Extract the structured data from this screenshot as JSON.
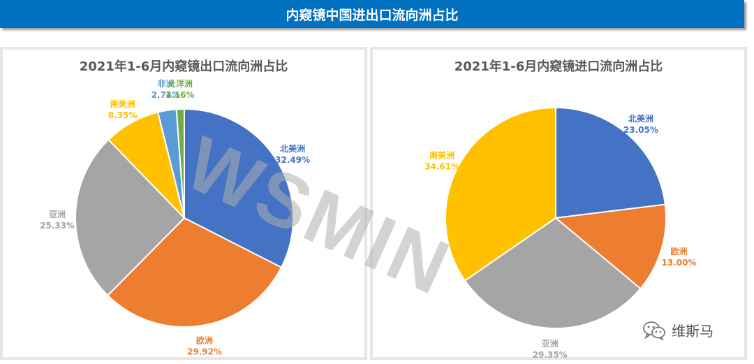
{
  "header": {
    "title": "内窥镜中国进出口流向洲占比"
  },
  "watermark": "WSMIN",
  "brand": {
    "name": "维斯马",
    "icon": "wechat-icon"
  },
  "colors": {
    "北美洲": "#4472c4",
    "欧洲": "#ed7d31",
    "亚洲": "#a5a5a5",
    "南美洲": "#ffc000",
    "非洲": "#5b9bd5",
    "大洋洲": "#70ad47"
  },
  "chart_data": [
    {
      "type": "pie",
      "title": "2021年1-6月内窥镜出口流向洲占比",
      "slices": [
        {
          "label": "北美洲",
          "value": 32.49,
          "text": "32.49%"
        },
        {
          "label": "欧洲",
          "value": 29.92,
          "text": "29.92%"
        },
        {
          "label": "亚洲",
          "value": 25.33,
          "text": "25.33%"
        },
        {
          "label": "南美洲",
          "value": 8.35,
          "text": "8.35%"
        },
        {
          "label": "非洲",
          "value": 2.74,
          "text": "2.74%"
        },
        {
          "label": "大洋洲",
          "value": 1.16,
          "text": "1.16%"
        }
      ]
    },
    {
      "type": "pie",
      "title": "2021年1-6月内窥镜进口流向洲占比",
      "slices": [
        {
          "label": "北美洲",
          "value": 23.05,
          "text": "23.05%"
        },
        {
          "label": "欧洲",
          "value": 13.0,
          "text": "13.00%"
        },
        {
          "label": "亚洲",
          "value": 29.35,
          "text": "29.35%"
        },
        {
          "label": "南美洲",
          "value": 34.61,
          "text": "34.61%"
        }
      ]
    }
  ]
}
